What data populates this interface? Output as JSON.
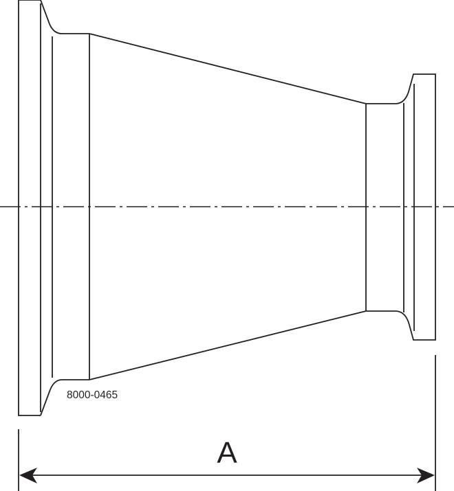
{
  "drawing": {
    "part_number": "8000-0465",
    "dimension_label": "A",
    "line_color": "#231f20"
  }
}
